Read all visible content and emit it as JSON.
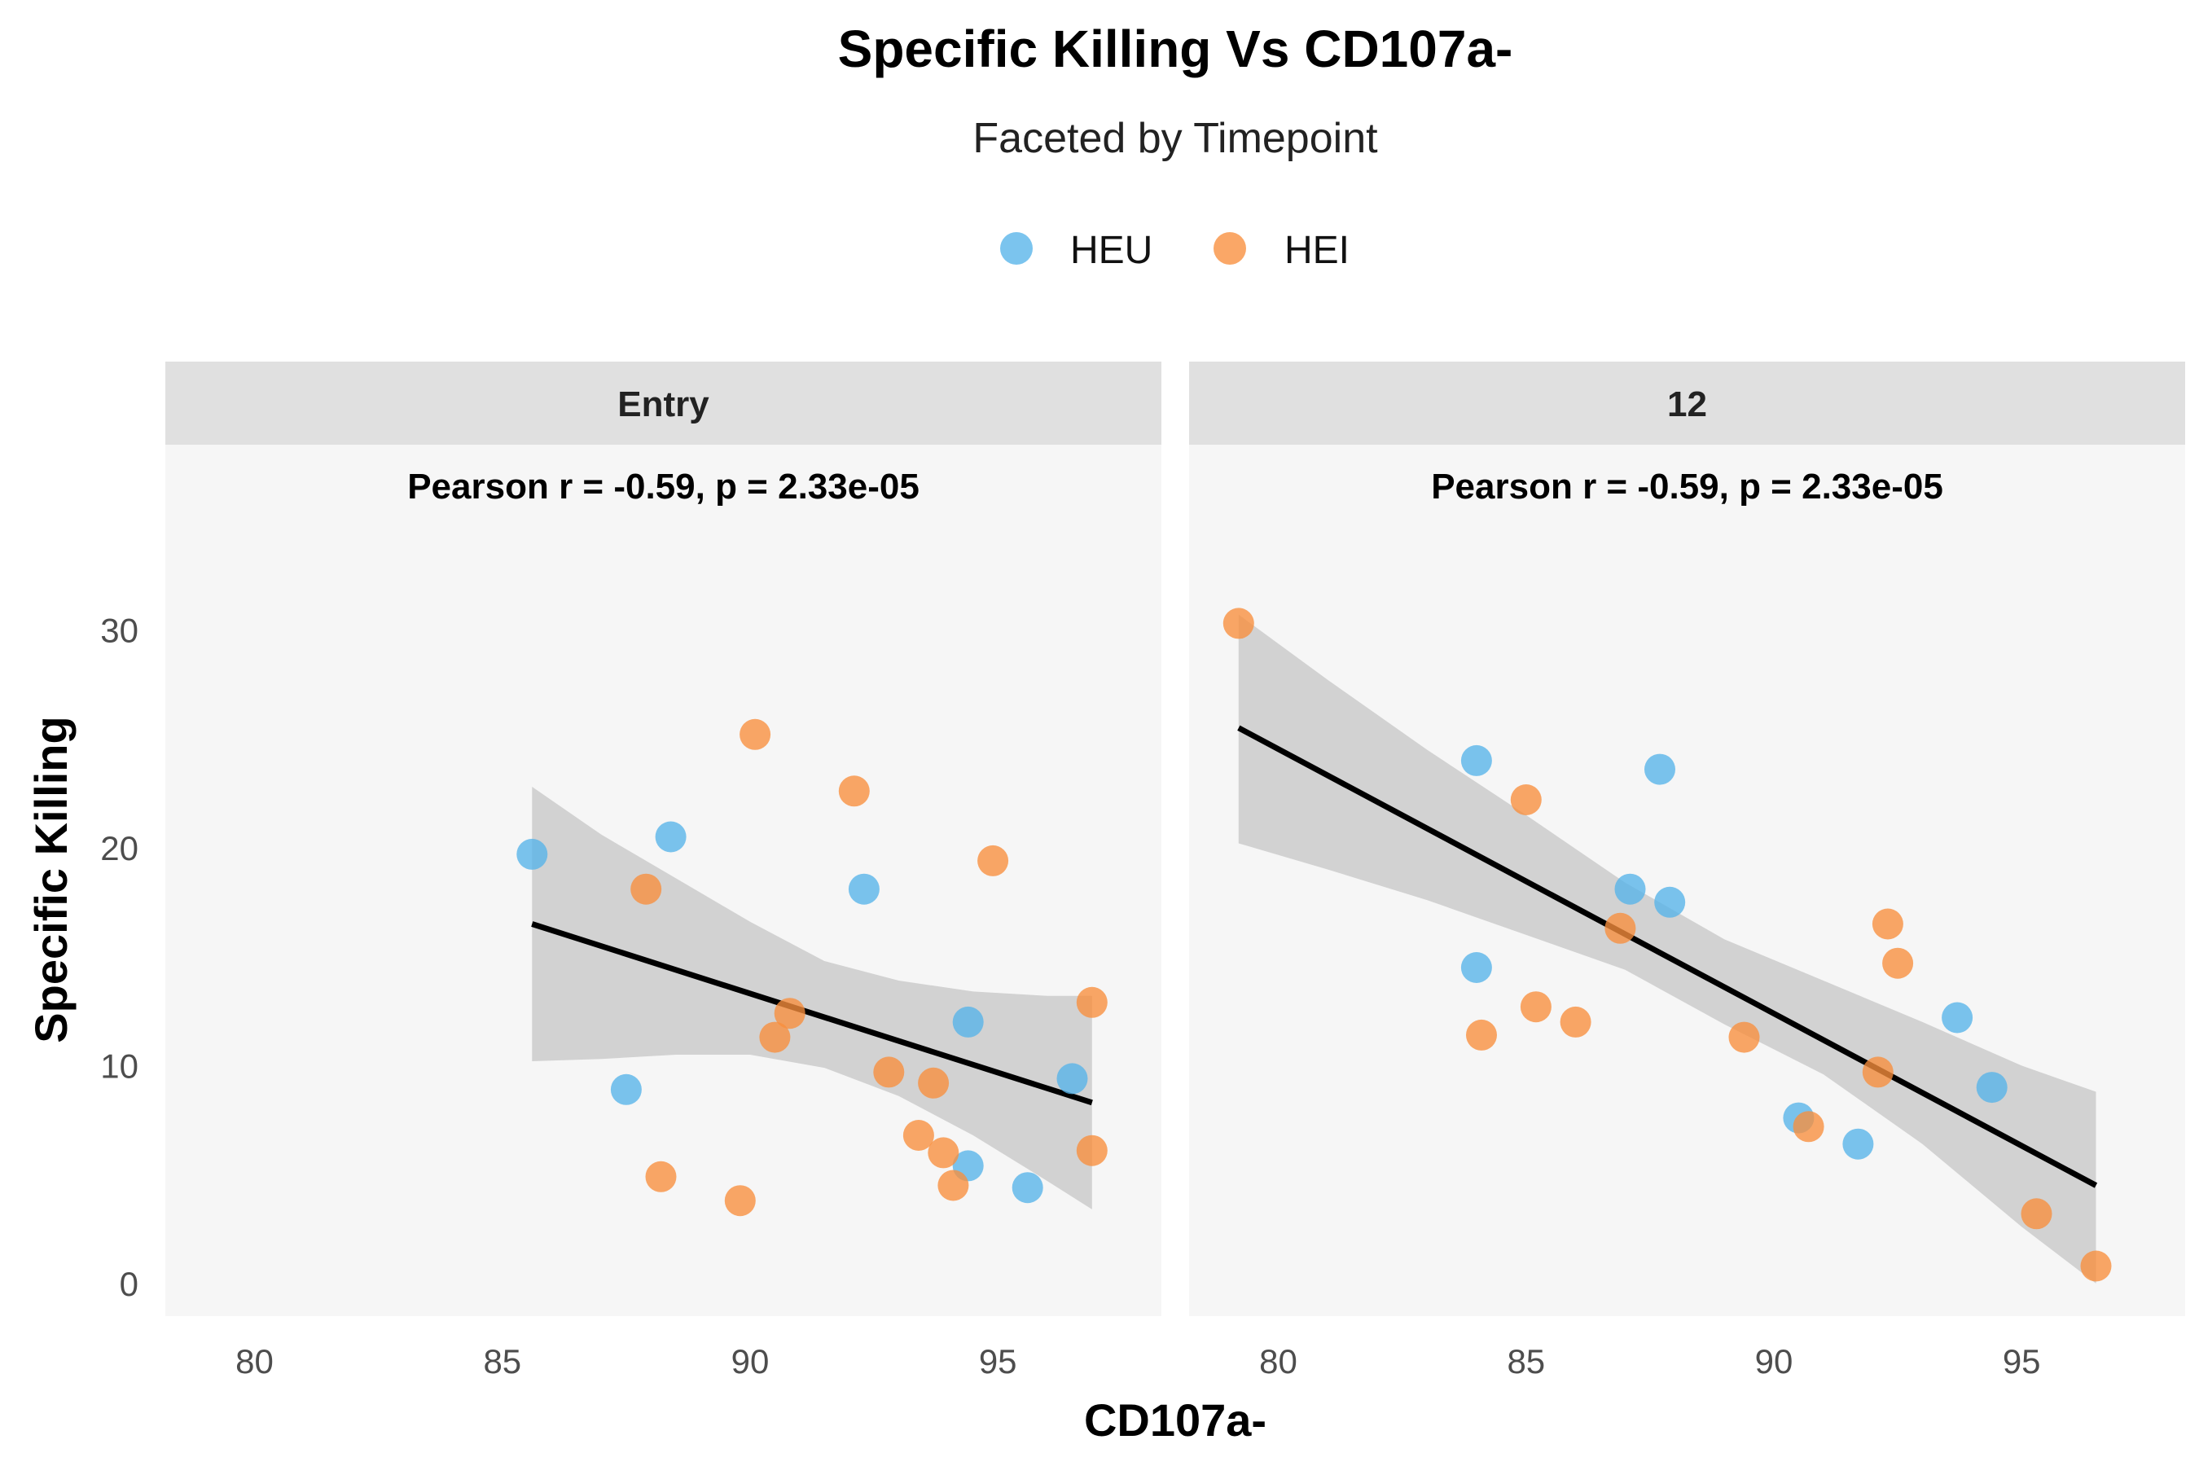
{
  "chart_data": {
    "type": "scatter",
    "title": "Specific Killing Vs CD107a-",
    "subtitle": "Faceted by Timepoint",
    "xlabel": "CD107a-",
    "ylabel": "Specific Killing",
    "xlim": [
      78.2,
      98.3
    ],
    "ylim": [
      -1.5,
      38.5
    ],
    "xticks": [
      80,
      85,
      90,
      95
    ],
    "yticks": [
      0,
      10,
      20,
      30
    ],
    "grid": false,
    "legend_position": "top",
    "legend": [
      {
        "name": "HEU",
        "color": "#56B4E9"
      },
      {
        "name": "HEI",
        "color": "#F98E3C"
      }
    ],
    "facets": [
      {
        "label": "Entry",
        "annotation": "Pearson r = -0.59, p = 2.33e-05",
        "fit": {
          "x0": 85.6,
          "y0": 16.5,
          "x1": 96.9,
          "y1": 8.3
        },
        "band": [
          {
            "x": 85.6,
            "lo": 10.2,
            "hi": 22.8
          },
          {
            "x": 87.0,
            "lo": 10.3,
            "hi": 20.6
          },
          {
            "x": 88.5,
            "lo": 10.5,
            "hi": 18.6
          },
          {
            "x": 90.0,
            "lo": 10.5,
            "hi": 16.6
          },
          {
            "x": 91.5,
            "lo": 9.9,
            "hi": 14.8
          },
          {
            "x": 93.0,
            "lo": 8.6,
            "hi": 13.9
          },
          {
            "x": 94.5,
            "lo": 6.8,
            "hi": 13.4
          },
          {
            "x": 96.0,
            "lo": 4.7,
            "hi": 13.2
          },
          {
            "x": 96.9,
            "lo": 3.4,
            "hi": 13.2
          }
        ],
        "points": [
          {
            "x": 85.6,
            "y": 19.7,
            "group": "HEU"
          },
          {
            "x": 88.4,
            "y": 20.5,
            "group": "HEU"
          },
          {
            "x": 87.5,
            "y": 8.9,
            "group": "HEU"
          },
          {
            "x": 92.3,
            "y": 18.1,
            "group": "HEU"
          },
          {
            "x": 94.4,
            "y": 12.0,
            "group": "HEU"
          },
          {
            "x": 94.4,
            "y": 5.4,
            "group": "HEU"
          },
          {
            "x": 95.6,
            "y": 4.4,
            "group": "HEU"
          },
          {
            "x": 96.5,
            "y": 9.4,
            "group": "HEU"
          },
          {
            "x": 90.1,
            "y": 25.2,
            "group": "HEI"
          },
          {
            "x": 92.1,
            "y": 22.6,
            "group": "HEI"
          },
          {
            "x": 94.9,
            "y": 19.4,
            "group": "HEI"
          },
          {
            "x": 87.9,
            "y": 18.1,
            "group": "HEI"
          },
          {
            "x": 90.8,
            "y": 12.4,
            "group": "HEI"
          },
          {
            "x": 90.5,
            "y": 11.3,
            "group": "HEI"
          },
          {
            "x": 92.8,
            "y": 9.7,
            "group": "HEI"
          },
          {
            "x": 93.7,
            "y": 9.2,
            "group": "HEI"
          },
          {
            "x": 96.9,
            "y": 12.9,
            "group": "HEI"
          },
          {
            "x": 93.4,
            "y": 6.8,
            "group": "HEI"
          },
          {
            "x": 93.9,
            "y": 6.0,
            "group": "HEI"
          },
          {
            "x": 94.1,
            "y": 4.5,
            "group": "HEI"
          },
          {
            "x": 96.9,
            "y": 6.1,
            "group": "HEI"
          },
          {
            "x": 88.2,
            "y": 4.9,
            "group": "HEI"
          },
          {
            "x": 89.8,
            "y": 3.8,
            "group": "HEI"
          }
        ]
      },
      {
        "label": "12",
        "annotation": "Pearson r = -0.59, p = 2.33e-05",
        "fit": {
          "x0": 79.2,
          "y0": 25.5,
          "x1": 96.5,
          "y1": 4.5
        },
        "band": [
          {
            "x": 79.2,
            "lo": 20.2,
            "hi": 30.7
          },
          {
            "x": 81.0,
            "lo": 19.0,
            "hi": 27.7
          },
          {
            "x": 83.0,
            "lo": 17.6,
            "hi": 24.5
          },
          {
            "x": 85.0,
            "lo": 16.0,
            "hi": 21.5
          },
          {
            "x": 87.0,
            "lo": 14.4,
            "hi": 18.4
          },
          {
            "x": 89.0,
            "lo": 11.9,
            "hi": 15.8
          },
          {
            "x": 91.0,
            "lo": 9.6,
            "hi": 13.9
          },
          {
            "x": 93.0,
            "lo": 6.4,
            "hi": 12.0
          },
          {
            "x": 95.0,
            "lo": 2.6,
            "hi": 10.0
          },
          {
            "x": 96.5,
            "lo": 0.0,
            "hi": 8.8
          }
        ],
        "points": [
          {
            "x": 84.0,
            "y": 24.0,
            "group": "HEU"
          },
          {
            "x": 87.7,
            "y": 23.6,
            "group": "HEU"
          },
          {
            "x": 87.1,
            "y": 18.1,
            "group": "HEU"
          },
          {
            "x": 87.9,
            "y": 17.5,
            "group": "HEU"
          },
          {
            "x": 84.0,
            "y": 14.5,
            "group": "HEU"
          },
          {
            "x": 93.7,
            "y": 12.2,
            "group": "HEU"
          },
          {
            "x": 94.4,
            "y": 9.0,
            "group": "HEU"
          },
          {
            "x": 90.5,
            "y": 7.6,
            "group": "HEU"
          },
          {
            "x": 91.7,
            "y": 6.4,
            "group": "HEU"
          },
          {
            "x": 79.2,
            "y": 30.3,
            "group": "HEI"
          },
          {
            "x": 85.0,
            "y": 22.2,
            "group": "HEI"
          },
          {
            "x": 86.9,
            "y": 16.3,
            "group": "HEI"
          },
          {
            "x": 92.3,
            "y": 16.5,
            "group": "HEI"
          },
          {
            "x": 92.5,
            "y": 14.7,
            "group": "HEI"
          },
          {
            "x": 85.2,
            "y": 12.7,
            "group": "HEI"
          },
          {
            "x": 86.0,
            "y": 12.0,
            "group": "HEI"
          },
          {
            "x": 84.1,
            "y": 11.4,
            "group": "HEI"
          },
          {
            "x": 89.4,
            "y": 11.3,
            "group": "HEI"
          },
          {
            "x": 92.1,
            "y": 9.7,
            "group": "HEI"
          },
          {
            "x": 90.7,
            "y": 7.2,
            "group": "HEI"
          },
          {
            "x": 95.3,
            "y": 3.2,
            "group": "HEI"
          },
          {
            "x": 96.5,
            "y": 0.8,
            "group": "HEI"
          }
        ]
      }
    ]
  }
}
